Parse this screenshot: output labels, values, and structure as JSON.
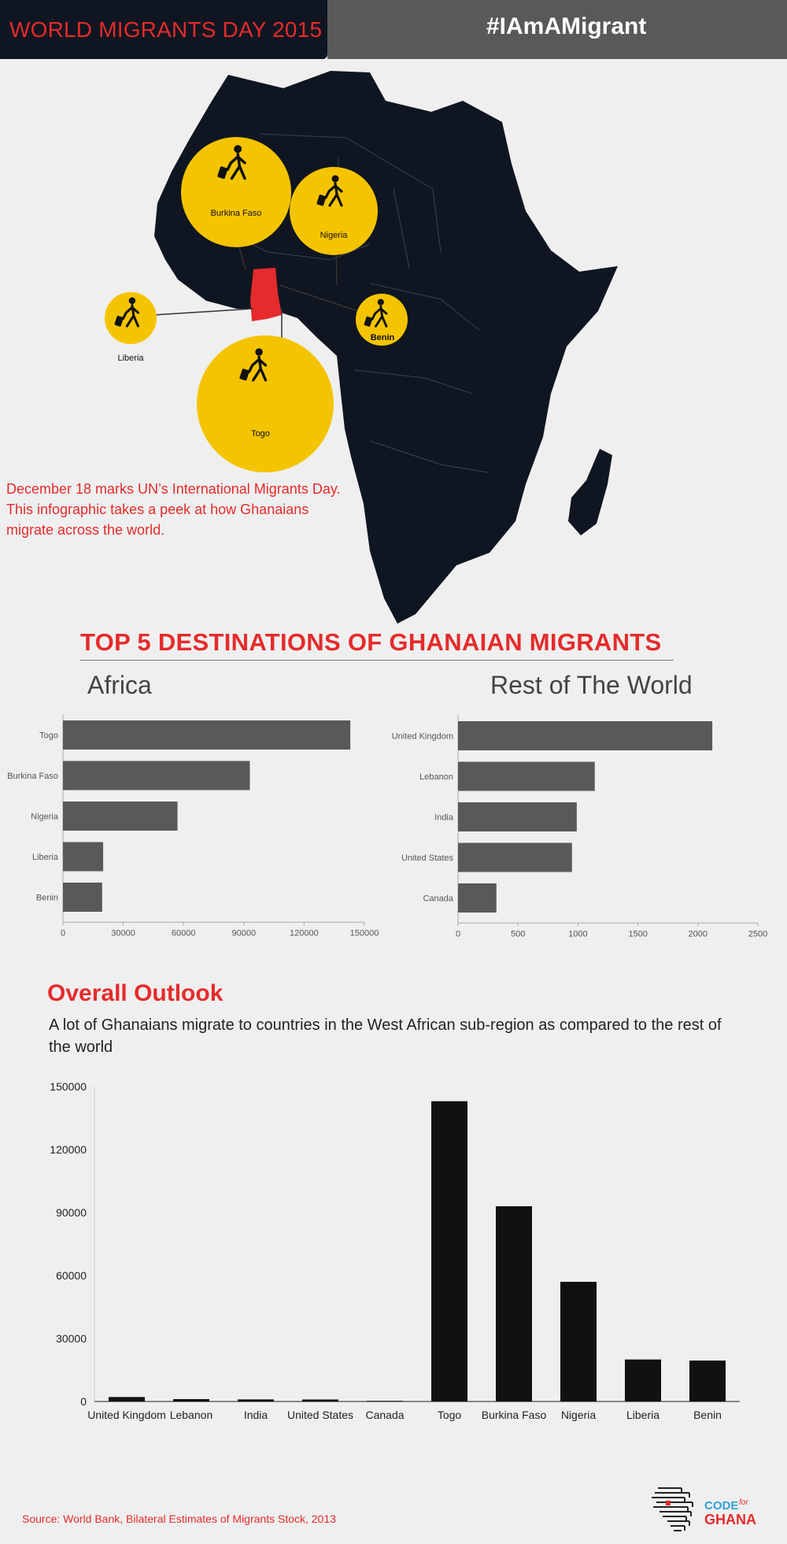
{
  "header": {
    "title": "WORLD MIGRANTS DAY 2015",
    "hashtag": "#IAmAMigrant"
  },
  "colors": {
    "accent_red": "#e52b2b",
    "map_fill": "#0f1621",
    "bubble_yellow": "#f5c400",
    "bar_gray": "#595959",
    "bar_black": "#111111"
  },
  "map": {
    "bubbles": [
      {
        "label": "Burkina Faso",
        "icon": "walking-traveler-icon"
      },
      {
        "label": "Nigeria",
        "icon": "walking-traveler-icon"
      },
      {
        "label": "Liberia",
        "icon": "walking-traveler-icon"
      },
      {
        "label": "Benin",
        "icon": "walking-traveler-icon"
      },
      {
        "label": "Togo",
        "icon": "walking-traveler-icon"
      }
    ]
  },
  "intro_text": "December 18 marks UN’s International Migrants Day. This infographic takes a peek at how Ghanaians migrate across the world.",
  "top5": {
    "title": "TOP 5 DESTINATIONS OF GHANAIAN MIGRANTS",
    "africa_heading": "Africa",
    "world_heading": "Rest of The World"
  },
  "overall": {
    "title": "Overall Outlook",
    "description": "A lot of Ghanaians migrate to countries in the West African sub-region as compared to the rest of the world"
  },
  "source": "Source: World Bank, Bilateral Estimates of Migrants Stock, 2013",
  "logo": {
    "code": "CODE",
    "for": "for",
    "ghana": "GHANA"
  },
  "chart_data": [
    {
      "type": "bar",
      "orientation": "horizontal",
      "title": "Africa",
      "categories": [
        "Togo",
        "Burkina Faso",
        "Nigeria",
        "Liberia",
        "Benin"
      ],
      "values": [
        143000,
        93000,
        57000,
        20000,
        19500
      ],
      "xlim": [
        0,
        150000
      ],
      "xticks": [
        0,
        30000,
        60000,
        90000,
        120000,
        150000
      ]
    },
    {
      "type": "bar",
      "orientation": "horizontal",
      "title": "Rest of The World",
      "categories": [
        "United Kingdom",
        "Lebanon",
        "India",
        "United States",
        "Canada"
      ],
      "values": [
        2120,
        1140,
        990,
        950,
        320
      ],
      "xlim": [
        0,
        2500
      ],
      "xticks": [
        0,
        500,
        1000,
        1500,
        2000,
        2500
      ]
    },
    {
      "type": "bar",
      "orientation": "vertical",
      "title": "Overall Outlook",
      "categories": [
        "United Kingdom",
        "Lebanon",
        "India",
        "United States",
        "Canada",
        "Togo",
        "Burkina Faso",
        "Nigeria",
        "Liberia",
        "Benin"
      ],
      "values": [
        2120,
        1140,
        990,
        950,
        320,
        143000,
        93000,
        57000,
        20000,
        19500
      ],
      "ylim": [
        0,
        150000
      ],
      "yticks": [
        0,
        30000,
        60000,
        90000,
        120000,
        150000
      ]
    }
  ]
}
